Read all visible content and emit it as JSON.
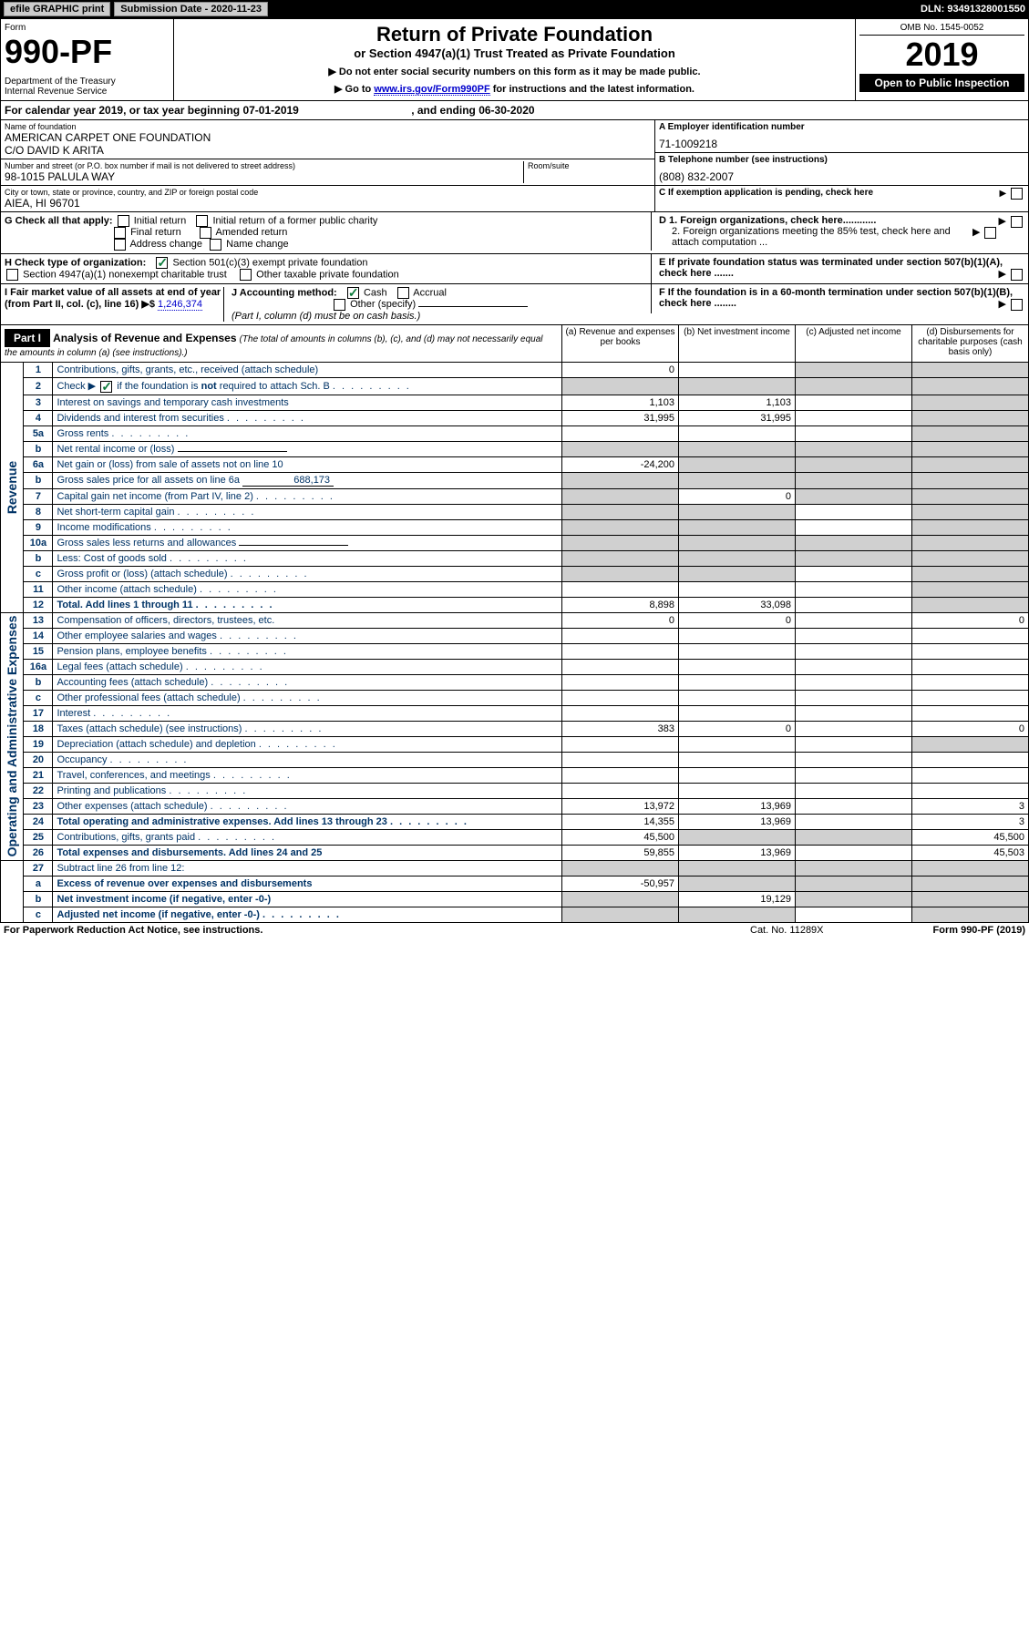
{
  "topbar": {
    "efile": "efile GRAPHIC print",
    "submission": "Submission Date - 2020-11-23",
    "dln": "DLN: 93491328001550"
  },
  "header": {
    "form_word": "Form",
    "form_num": "990-PF",
    "dept": "Department of the Treasury\nInternal Revenue Service",
    "title": "Return of Private Foundation",
    "subtitle": "or Section 4947(a)(1) Trust Treated as Private Foundation",
    "note1": "▶ Do not enter social security numbers on this form as it may be made public.",
    "note2_pre": "▶ Go to ",
    "note2_link": "www.irs.gov/Form990PF",
    "note2_post": " for instructions and the latest information.",
    "omb": "OMB No. 1545-0052",
    "year": "2019",
    "open": "Open to Public Inspection"
  },
  "calendar": {
    "text_pre": "For calendar year 2019, or tax year beginning ",
    "begin": "07-01-2019",
    "text_mid": " , and ending ",
    "end": "06-30-2020"
  },
  "entity": {
    "name_lbl": "Name of foundation",
    "name": "AMERICAN CARPET ONE FOUNDATION\nC/O DAVID K ARITA",
    "addr_lbl": "Number and street (or P.O. box number if mail is not delivered to street address)",
    "addr": "98-1015 PALULA WAY",
    "room_lbl": "Room/suite",
    "city_lbl": "City or town, state or province, country, and ZIP or foreign postal code",
    "city": "AIEA, HI  96701",
    "a_lbl": "A Employer identification number",
    "a_val": "71-1009218",
    "b_lbl": "B Telephone number (see instructions)",
    "b_val": "(808) 832-2007",
    "c_lbl": "C If exemption application is pending, check here"
  },
  "checks": {
    "g_label": "G Check all that apply:",
    "g_opts": [
      "Initial return",
      "Initial return of a former public charity",
      "Final return",
      "Amended return",
      "Address change",
      "Name change"
    ],
    "d1": "D 1. Foreign organizations, check here............",
    "d2": "2. Foreign organizations meeting the 85% test, check here and attach computation ...",
    "h_label": "H Check type of organization:",
    "h_opts": [
      "Section 501(c)(3) exempt private foundation",
      "Section 4947(a)(1) nonexempt charitable trust",
      "Other taxable private foundation"
    ],
    "e_label": "E  If private foundation status was terminated under section 507(b)(1)(A), check here .......",
    "i_label": "I Fair market value of all assets at end of year (from Part II, col. (c), line 16) ▶$ ",
    "i_val": "1,246,374",
    "j_label": "J Accounting method:",
    "j_opts": [
      "Cash",
      "Accrual",
      "Other (specify)"
    ],
    "j_note": "(Part I, column (d) must be on cash basis.)",
    "f_label": "F  If the foundation is in a 60-month termination under section 507(b)(1)(B), check here ........"
  },
  "part1": {
    "label": "Part I",
    "title": "Analysis of Revenue and Expenses",
    "title_note": "(The total of amounts in columns (b), (c), and (d) may not necessarily equal the amounts in column (a) (see instructions).)",
    "col_a": "(a)    Revenue and expenses per books",
    "col_b": "(b)   Net investment income",
    "col_c": "(c)   Adjusted net income",
    "col_d": "(d)   Disbursements for charitable purposes (cash basis only)"
  },
  "vlabels": {
    "revenue": "Revenue",
    "expenses": "Operating and Administrative Expenses"
  },
  "rows": [
    {
      "n": "1",
      "d": "Contributions, gifts, grants, etc., received (attach schedule)",
      "a": "0",
      "b": "",
      "c": "shade",
      "dd": "shade"
    },
    {
      "n": "2",
      "d": "Check ▶ ☑ if the foundation is not required to attach Sch. B",
      "a": "shade",
      "b": "shade",
      "c": "shade",
      "dd": "shade",
      "special": "check"
    },
    {
      "n": "3",
      "d": "Interest on savings and temporary cash investments",
      "a": "1,103",
      "b": "1,103",
      "c": "",
      "dd": "shade"
    },
    {
      "n": "4",
      "d": "Dividends and interest from securities",
      "a": "31,995",
      "b": "31,995",
      "c": "",
      "dd": "shade",
      "dots": true
    },
    {
      "n": "5a",
      "d": "Gross rents",
      "a": "",
      "b": "",
      "c": "",
      "dd": "shade",
      "dots": true
    },
    {
      "n": "b",
      "d": "Net rental income or (loss)",
      "a": "shade",
      "b": "shade",
      "c": "shade",
      "dd": "shade",
      "field": true
    },
    {
      "n": "6a",
      "d": "Net gain or (loss) from sale of assets not on line 10",
      "a": "-24,200",
      "b": "shade",
      "c": "shade",
      "dd": "shade"
    },
    {
      "n": "b",
      "d": "Gross sales price for all assets on line 6a",
      "a": "shade",
      "b": "shade",
      "c": "shade",
      "dd": "shade",
      "inline": "688,173"
    },
    {
      "n": "7",
      "d": "Capital gain net income (from Part IV, line 2)",
      "a": "shade",
      "b": "0",
      "c": "shade",
      "dd": "shade",
      "dots": true
    },
    {
      "n": "8",
      "d": "Net short-term capital gain",
      "a": "shade",
      "b": "shade",
      "c": "",
      "dd": "shade",
      "dots": true
    },
    {
      "n": "9",
      "d": "Income modifications",
      "a": "shade",
      "b": "shade",
      "c": "",
      "dd": "shade",
      "dots": true
    },
    {
      "n": "10a",
      "d": "Gross sales less returns and allowances",
      "a": "shade",
      "b": "shade",
      "c": "shade",
      "dd": "shade",
      "field": true
    },
    {
      "n": "b",
      "d": "Less: Cost of goods sold",
      "a": "shade",
      "b": "shade",
      "c": "shade",
      "dd": "shade",
      "field": true,
      "dots": true
    },
    {
      "n": "c",
      "d": "Gross profit or (loss) (attach schedule)",
      "a": "shade",
      "b": "shade",
      "c": "",
      "dd": "shade",
      "dots": true
    },
    {
      "n": "11",
      "d": "Other income (attach schedule)",
      "a": "",
      "b": "",
      "c": "",
      "dd": "shade",
      "dots": true
    },
    {
      "n": "12",
      "d": "Total. Add lines 1 through 11",
      "a": "8,898",
      "b": "33,098",
      "c": "",
      "dd": "shade",
      "bold": true,
      "dots": true
    }
  ],
  "rows2": [
    {
      "n": "13",
      "d": "Compensation of officers, directors, trustees, etc.",
      "a": "0",
      "b": "0",
      "c": "",
      "dd": "0"
    },
    {
      "n": "14",
      "d": "Other employee salaries and wages",
      "a": "",
      "b": "",
      "c": "",
      "dd": "",
      "dots": true
    },
    {
      "n": "15",
      "d": "Pension plans, employee benefits",
      "a": "",
      "b": "",
      "c": "",
      "dd": "",
      "dots": true
    },
    {
      "n": "16a",
      "d": "Legal fees (attach schedule)",
      "a": "",
      "b": "",
      "c": "",
      "dd": "",
      "dots": true
    },
    {
      "n": "b",
      "d": "Accounting fees (attach schedule)",
      "a": "",
      "b": "",
      "c": "",
      "dd": "",
      "dots": true
    },
    {
      "n": "c",
      "d": "Other professional fees (attach schedule)",
      "a": "",
      "b": "",
      "c": "",
      "dd": "",
      "dots": true
    },
    {
      "n": "17",
      "d": "Interest",
      "a": "",
      "b": "",
      "c": "",
      "dd": "",
      "dots": true
    },
    {
      "n": "18",
      "d": "Taxes (attach schedule) (see instructions)",
      "a": "383",
      "b": "0",
      "c": "",
      "dd": "0",
      "dots": true
    },
    {
      "n": "19",
      "d": "Depreciation (attach schedule) and depletion",
      "a": "",
      "b": "",
      "c": "",
      "dd": "shade",
      "dots": true
    },
    {
      "n": "20",
      "d": "Occupancy",
      "a": "",
      "b": "",
      "c": "",
      "dd": "",
      "dots": true
    },
    {
      "n": "21",
      "d": "Travel, conferences, and meetings",
      "a": "",
      "b": "",
      "c": "",
      "dd": "",
      "dots": true
    },
    {
      "n": "22",
      "d": "Printing and publications",
      "a": "",
      "b": "",
      "c": "",
      "dd": "",
      "dots": true
    },
    {
      "n": "23",
      "d": "Other expenses (attach schedule)",
      "a": "13,972",
      "b": "13,969",
      "c": "",
      "dd": "3",
      "dots": true
    },
    {
      "n": "24",
      "d": "Total operating and administrative expenses. Add lines 13 through 23",
      "a": "14,355",
      "b": "13,969",
      "c": "",
      "dd": "3",
      "bold": true,
      "dots": true
    },
    {
      "n": "25",
      "d": "Contributions, gifts, grants paid",
      "a": "45,500",
      "b": "shade",
      "c": "shade",
      "dd": "45,500",
      "dots": true
    },
    {
      "n": "26",
      "d": "Total expenses and disbursements. Add lines 24 and 25",
      "a": "59,855",
      "b": "13,969",
      "c": "",
      "dd": "45,503",
      "bold": true
    }
  ],
  "rows3": [
    {
      "n": "27",
      "d": "Subtract line 26 from line 12:",
      "a": "shade",
      "b": "shade",
      "c": "shade",
      "dd": "shade"
    },
    {
      "n": "a",
      "d": "Excess of revenue over expenses and disbursements",
      "a": "-50,957",
      "b": "shade",
      "c": "shade",
      "dd": "shade",
      "bold": true
    },
    {
      "n": "b",
      "d": "Net investment income (if negative, enter -0-)",
      "a": "shade",
      "b": "19,129",
      "c": "shade",
      "dd": "shade",
      "bold": true
    },
    {
      "n": "c",
      "d": "Adjusted net income (if negative, enter -0-)",
      "a": "shade",
      "b": "shade",
      "c": "",
      "dd": "shade",
      "bold": true,
      "dots": true
    }
  ],
  "footer": {
    "pra": "For Paperwork Reduction Act Notice, see instructions.",
    "cat": "Cat. No. 11289X",
    "form": "Form 990-PF (2019)"
  }
}
